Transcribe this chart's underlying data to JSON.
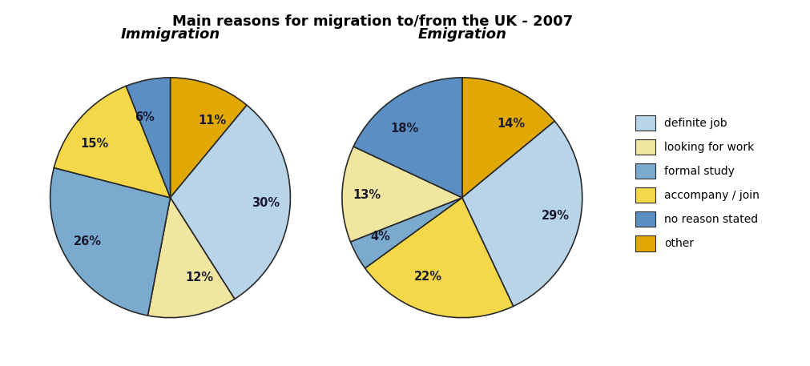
{
  "title": "Main reasons for migration to/from the UK - 2007",
  "title_fontsize": 13,
  "chart1_title": "Immigration",
  "chart2_title": "Emigration",
  "subtitle_fontstyle": "italic",
  "subtitle_fontsize": 13,
  "colors": {
    "definite_job": "#b8d4e8",
    "looking_for_work": "#f0e6a0",
    "formal_study": "#7aabcf",
    "accompany_join": "#f5d84a",
    "no_reason_stated": "#5b8fc4",
    "other": "#e0a800"
  },
  "immigration_slices": [
    {
      "label": "11%",
      "value": 11,
      "color_key": "other"
    },
    {
      "label": "30%",
      "value": 30,
      "color_key": "definite_job"
    },
    {
      "label": "12%",
      "value": 12,
      "color_key": "looking_for_work"
    },
    {
      "label": "26%",
      "value": 26,
      "color_key": "formal_study"
    },
    {
      "label": "15%",
      "value": 15,
      "color_key": "accompany_join"
    },
    {
      "label": "6%",
      "value": 6,
      "color_key": "no_reason_stated"
    }
  ],
  "emigration_slices": [
    {
      "label": "14%",
      "value": 14,
      "color_key": "other"
    },
    {
      "label": "29%",
      "value": 29,
      "color_key": "definite_job"
    },
    {
      "label": "22%",
      "value": 22,
      "color_key": "accompany_join"
    },
    {
      "label": "4%",
      "value": 4,
      "color_key": "formal_study"
    },
    {
      "label": "13%",
      "value": 13,
      "color_key": "looking_for_work"
    },
    {
      "label": "18%",
      "value": 18,
      "color_key": "no_reason_stated"
    }
  ],
  "legend_entries": [
    {
      "label": "definite job",
      "color_key": "definite_job"
    },
    {
      "label": "looking for work",
      "color_key": "looking_for_work"
    },
    {
      "label": "formal study",
      "color_key": "formal_study"
    },
    {
      "label": "accompany / join",
      "color_key": "accompany_join"
    },
    {
      "label": "no reason stated",
      "color_key": "no_reason_stated"
    },
    {
      "label": "other",
      "color_key": "other"
    }
  ],
  "background_color": "#ffffff",
  "label_fontsize": 10.5,
  "wedge_edge_color": "#2a2a2a",
  "wedge_edge_width": 1.2,
  "startangle": 90,
  "label_distance": 0.68
}
